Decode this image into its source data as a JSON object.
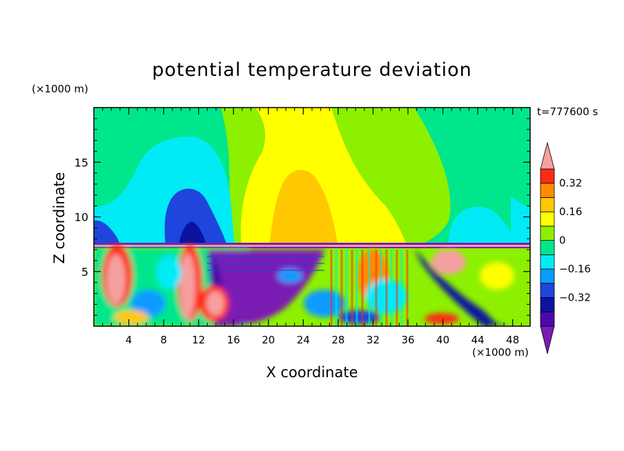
{
  "title": "potential temperature deviation",
  "time_label": "t=777600 s",
  "x_axis": {
    "label": "X coordinate",
    "unit": "(×1000 m)"
  },
  "z_axis": {
    "label": "Z coordinate",
    "unit": "(×1000 m)"
  },
  "chart_data": {
    "type": "heatmap",
    "title": "potential temperature deviation",
    "xlabel": "X coordinate",
    "ylabel": "Z coordinate",
    "xlim": [
      0,
      50
    ],
    "ylim": [
      0,
      20
    ],
    "x_ticks": [
      4,
      8,
      12,
      16,
      20,
      24,
      28,
      32,
      36,
      40,
      44,
      48
    ],
    "y_ticks": [
      5,
      10,
      15
    ],
    "colorbar": {
      "levels": [
        -0.48,
        -0.4,
        -0.32,
        -0.24,
        -0.16,
        -0.08,
        0,
        0.08,
        0.16,
        0.24,
        0.32,
        0.4
      ],
      "tick_labels": [
        "0.32",
        "0.16",
        "0",
        "−0.16",
        "−0.32"
      ],
      "tick_values": [
        0.32,
        0.16,
        0,
        -0.16,
        -0.32
      ],
      "colors": [
        "#7a1cb4",
        "#4b0aa8",
        "#0a14a0",
        "#1e46dc",
        "#0a9bff",
        "#00ebf5",
        "#00e68c",
        "#8cf000",
        "#ffff00",
        "#ffc800",
        "#ff8c00",
        "#ff2a14",
        "#f5a0a0"
      ],
      "extend": "both"
    },
    "regions": [
      {
        "name": "upper-background",
        "value": -0.04
      },
      {
        "name": "cyan-lobe-left",
        "value": -0.12,
        "x": [
          0,
          18
        ],
        "z": [
          7.5,
          16
        ]
      },
      {
        "name": "blue-core-left",
        "value": -0.28,
        "x": [
          7,
          12
        ],
        "z": [
          7.5,
          12.5
        ]
      },
      {
        "name": "yellow-plume",
        "value": 0.12,
        "x": [
          14,
          37
        ],
        "z": [
          7.5,
          20
        ]
      },
      {
        "name": "orange-core",
        "value": 0.2,
        "x": [
          20,
          27
        ],
        "z": [
          7.5,
          14
        ]
      },
      {
        "name": "cyan-lobe-right",
        "value": -0.12,
        "x": [
          40,
          50
        ],
        "z": [
          7.5,
          12
        ]
      },
      {
        "name": "purple-low-level",
        "value": -0.44,
        "x": [
          16,
          25
        ],
        "z": [
          0,
          7
        ]
      },
      {
        "name": "pink-low-level-left",
        "value": 0.36,
        "x": [
          0,
          16
        ],
        "z": [
          0,
          7
        ]
      }
    ]
  }
}
